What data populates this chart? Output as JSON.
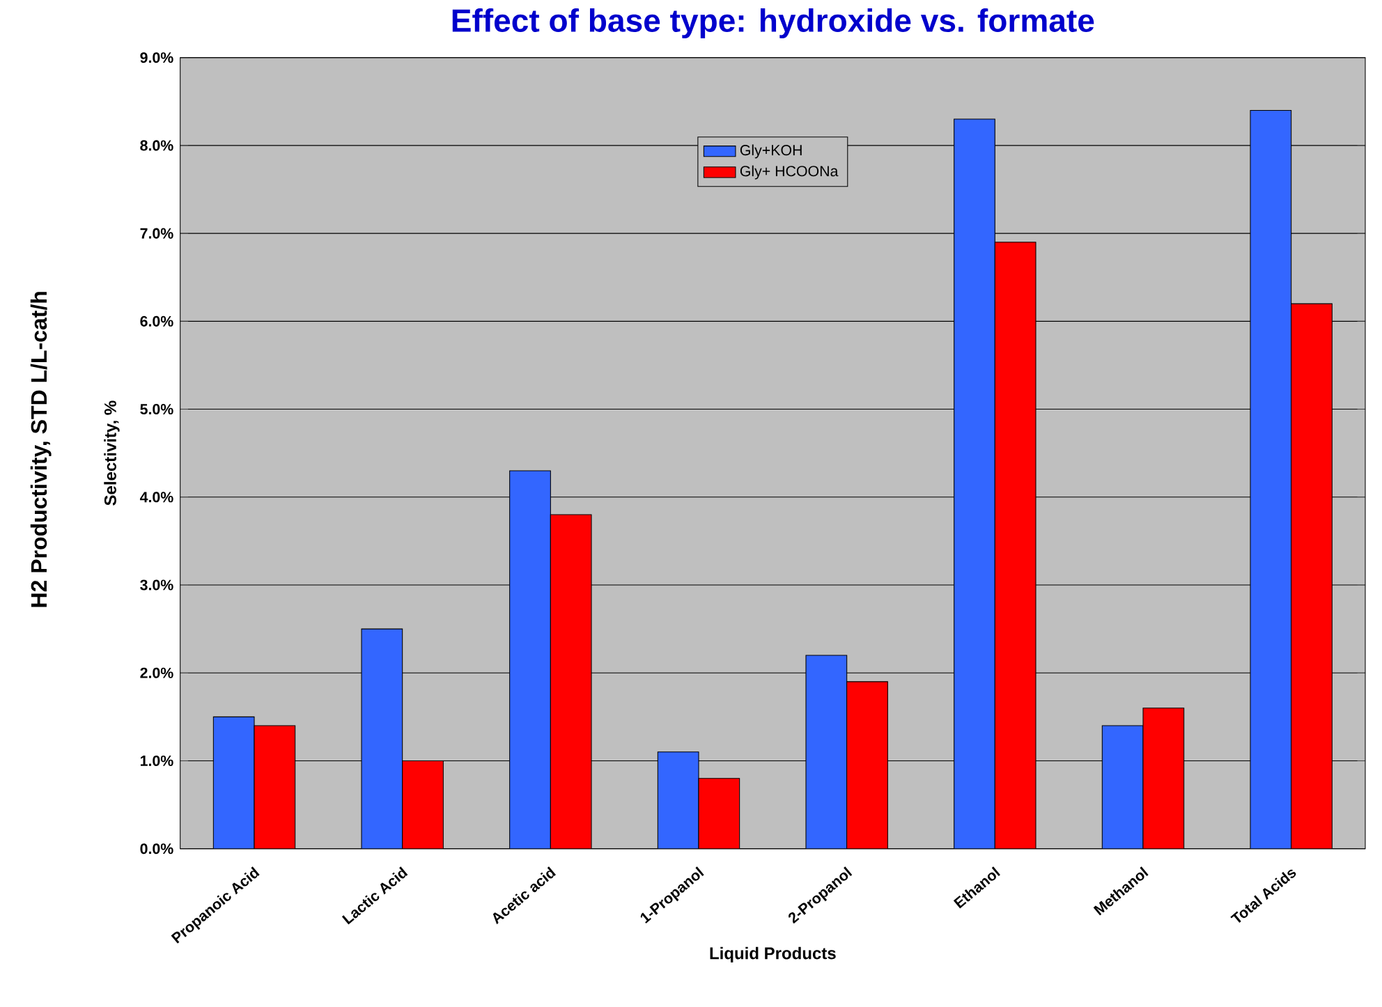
{
  "chart_data": {
    "type": "bar",
    "title": "Effect of base type: hydroxide vs. formate",
    "xlabel": "Liquid Products",
    "ylabel": "Selectivity, %",
    "annotations": [
      "H2 Productivity, STD L/L-cat/h"
    ],
    "categories": [
      "Propanoic Acid",
      "Lactic Acid",
      "Acetic acid",
      "1-Propanol",
      "2-Propanol",
      "Ethanol",
      "Methanol",
      "Total Acids"
    ],
    "series": [
      {
        "name": "Gly+KOH",
        "color": "#3366ff",
        "values": [
          1.5,
          2.5,
          4.3,
          1.1,
          2.2,
          8.3,
          1.4,
          8.4
        ]
      },
      {
        "name": "Gly+ HCOONa",
        "color": "#ff0000",
        "values": [
          1.4,
          1.0,
          3.8,
          0.8,
          1.9,
          6.9,
          1.6,
          6.2
        ]
      }
    ],
    "ylim": [
      0,
      9
    ],
    "yticks": [
      {
        "value": 0,
        "label": "0.0%"
      },
      {
        "value": 1,
        "label": "1.0%"
      },
      {
        "value": 2,
        "label": "2.0%"
      },
      {
        "value": 3,
        "label": "3.0%"
      },
      {
        "value": 4,
        "label": "4.0%"
      },
      {
        "value": 5,
        "label": "5.0%"
      },
      {
        "value": 6,
        "label": "6.0%"
      },
      {
        "value": 7,
        "label": "7.0%"
      },
      {
        "value": 8,
        "label": "8.0%"
      },
      {
        "value": 9,
        "label": "9.0%"
      }
    ],
    "grid": "y",
    "legend": "top"
  }
}
